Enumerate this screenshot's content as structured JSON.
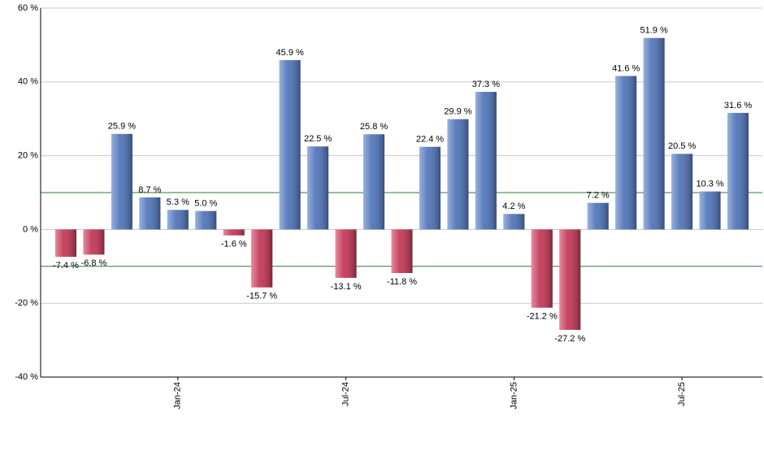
{
  "chart_data": {
    "type": "bar",
    "categories": [
      null,
      null,
      null,
      null,
      "Jan-24",
      null,
      null,
      null,
      null,
      null,
      "Jul-24",
      null,
      null,
      null,
      null,
      null,
      "Jan-25",
      null,
      null,
      null,
      null,
      null,
      "Jul-25",
      null,
      null
    ],
    "values": [
      -7.4,
      -6.8,
      25.9,
      8.7,
      5.3,
      5.0,
      -1.6,
      -15.7,
      45.9,
      22.5,
      -13.1,
      25.8,
      -11.8,
      22.4,
      29.9,
      37.3,
      4.2,
      -21.2,
      -27.2,
      7.2,
      41.6,
      51.9,
      20.5,
      10.3,
      31.6
    ],
    "value_labels": [
      "-7.4 %",
      "-6.8 %",
      "25.9 %",
      "8.7 %",
      "5.3 %",
      "5.0 %",
      "-1.6 %",
      "-15.7 %",
      "45.9 %",
      "22.5 %",
      "-13.1 %",
      "25.8 %",
      "-11.8 %",
      "22.4 %",
      "29.9 %",
      "37.3 %",
      "4.2 %",
      "-21.2 %",
      "-27.2 %",
      "7.2 %",
      "41.6 %",
      "51.9 %",
      "20.5 %",
      "10.3 %",
      "31.6 %"
    ],
    "positive_color": "#4a6fb5",
    "negative_color": "#c0304e",
    "reference_color": "#2e7d32",
    "reference_lines": [
      10,
      -10
    ],
    "ylim": [
      -40,
      60
    ],
    "yticks": [
      {
        "value": -40,
        "label": "-40 %"
      },
      {
        "value": -20,
        "label": "-20 %"
      },
      {
        "value": 0,
        "label": "0 %"
      },
      {
        "value": 20,
        "label": "20 %"
      },
      {
        "value": 40,
        "label": "40 %"
      },
      {
        "value": 60,
        "label": "60 %"
      }
    ],
    "grid": true
  }
}
